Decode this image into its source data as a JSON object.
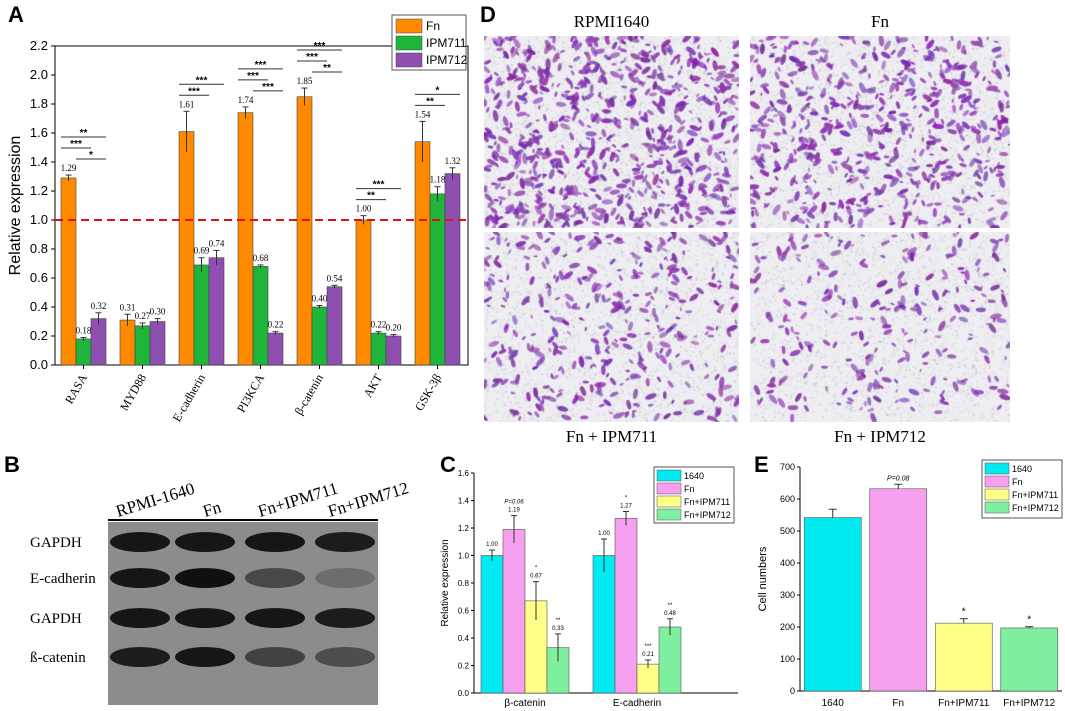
{
  "panels": {
    "A": "A",
    "B": "B",
    "C": "C",
    "D": "D",
    "E": "E"
  },
  "colors": {
    "fn": "#ff8a00",
    "ipm711": "#1fb43a",
    "ipm712": "#8f4fb0",
    "c1640": "#00eaf2",
    "cfn": "#f7a0f0",
    "c711": "#ffff88",
    "c712": "#7ff0a0",
    "ref_line": "#e01010",
    "stain": "#7a2a9a"
  },
  "chart_data": [
    {
      "panel": "A",
      "type": "bar",
      "ylabel": "Relative expression",
      "ylim": [
        0.0,
        2.2
      ],
      "yticks": [
        "0.0",
        "0.2",
        "0.4",
        "0.6",
        "0.8",
        "1.0",
        "1.2",
        "1.4",
        "1.6",
        "1.8",
        "2.0",
        "2.2"
      ],
      "reference_line": 1.0,
      "legend_position": "top-right",
      "categories": [
        "RASA",
        "MYD88",
        "E-cadherin",
        "PI3KCA",
        "β-catenin",
        "AKT",
        "GSK-3β"
      ],
      "series": [
        {
          "name": "Fn",
          "values": [
            1.29,
            0.31,
            1.61,
            1.74,
            1.85,
            1.0,
            1.54
          ],
          "labels": [
            "1.29",
            "0.31",
            "1.61",
            "1.74",
            "1.85",
            "1.00",
            "1.54"
          ],
          "errors": [
            0.02,
            0.04,
            0.14,
            0.04,
            0.06,
            0.03,
            0.14
          ]
        },
        {
          "name": "IPM711",
          "values": [
            0.18,
            0.27,
            0.69,
            0.68,
            0.4,
            0.22,
            1.18
          ],
          "labels": [
            "0.18",
            "0.27",
            "0.69",
            "0.68",
            "0.40",
            "0.22",
            "1.18"
          ],
          "errors": [
            0.01,
            0.02,
            0.05,
            0.01,
            0.01,
            0.01,
            0.05
          ]
        },
        {
          "name": "IPM712",
          "values": [
            0.32,
            0.3,
            0.74,
            0.22,
            0.54,
            0.2,
            1.32
          ],
          "labels": [
            "0.32",
            "0.30",
            "0.74",
            "0.22",
            "0.54",
            "0.20",
            "1.32"
          ],
          "errors": [
            0.04,
            0.02,
            0.05,
            0.01,
            0.01,
            0.01,
            0.04
          ]
        }
      ],
      "significance": [
        {
          "category": 0,
          "pair": "Fn-IPM712",
          "label": "**"
        },
        {
          "category": 0,
          "pair": "Fn-IPM711",
          "label": "***"
        },
        {
          "category": 0,
          "pair": "IPM711-IPM712",
          "label": "*"
        },
        {
          "category": 2,
          "pair": "Fn-IPM712",
          "label": "***"
        },
        {
          "category": 2,
          "pair": "Fn-IPM711",
          "label": "***"
        },
        {
          "category": 3,
          "pair": "Fn-IPM712",
          "label": "***"
        },
        {
          "category": 3,
          "pair": "Fn-IPM711",
          "label": "***"
        },
        {
          "category": 3,
          "pair": "IPM711-IPM712",
          "label": "***"
        },
        {
          "category": 4,
          "pair": "Fn-IPM712",
          "label": "***"
        },
        {
          "category": 4,
          "pair": "Fn-IPM711",
          "label": "***"
        },
        {
          "category": 4,
          "pair": "IPM711-IPM712",
          "label": "**"
        },
        {
          "category": 5,
          "pair": "Fn-IPM712",
          "label": "***"
        },
        {
          "category": 5,
          "pair": "Fn-IPM711",
          "label": "**"
        },
        {
          "category": 6,
          "pair": "Fn-IPM712",
          "label": "*"
        },
        {
          "category": 6,
          "pair": "Fn-IPM711",
          "label": "**"
        }
      ]
    },
    {
      "panel": "C",
      "type": "bar",
      "ylabel": "Relative expression",
      "ylim": [
        0.0,
        1.6
      ],
      "yticks": [
        "0.0",
        "0.2",
        "0.4",
        "0.6",
        "0.8",
        "1.0",
        "1.2",
        "1.4",
        "1.6"
      ],
      "legend_position": "top-right",
      "categories": [
        "β-catenin",
        "E-cadherin"
      ],
      "series": [
        {
          "name": "1640",
          "values": [
            1.0,
            1.0
          ],
          "errors": [
            0.04,
            0.12
          ]
        },
        {
          "name": "Fn",
          "values": [
            1.19,
            1.27
          ],
          "errors": [
            0.1,
            0.05
          ]
        },
        {
          "name": "Fn+IPM711",
          "values": [
            0.67,
            0.21
          ],
          "errors": [
            0.14,
            0.03
          ]
        },
        {
          "name": "Fn+IPM712",
          "values": [
            0.33,
            0.48
          ],
          "errors": [
            0.1,
            0.06
          ]
        }
      ],
      "annotations": [
        {
          "category": 0,
          "series": 0,
          "lines": [
            "1.00"
          ]
        },
        {
          "category": 0,
          "series": 1,
          "lines": [
            "P=0.06",
            "1.19"
          ]
        },
        {
          "category": 0,
          "series": 2,
          "lines": [
            "*",
            "0.67"
          ]
        },
        {
          "category": 0,
          "series": 3,
          "lines": [
            "**",
            "0.33"
          ]
        },
        {
          "category": 1,
          "series": 0,
          "lines": [
            "1.00"
          ]
        },
        {
          "category": 1,
          "series": 1,
          "lines": [
            "*",
            "1.27"
          ]
        },
        {
          "category": 1,
          "series": 2,
          "lines": [
            "***",
            "0.21"
          ]
        },
        {
          "category": 1,
          "series": 3,
          "lines": [
            "**",
            "0.48"
          ]
        }
      ]
    },
    {
      "panel": "E",
      "type": "bar",
      "ylabel": "Cell numbers",
      "ylim": [
        0,
        700
      ],
      "yticks": [
        "0",
        "100",
        "200",
        "300",
        "400",
        "500",
        "600",
        "700"
      ],
      "legend_position": "top-right",
      "categories": [
        "1640",
        "Fn",
        "Fn+IPM711",
        "Fn+IPM712"
      ],
      "values": [
        542,
        632,
        212,
        197
      ],
      "errors": [
        26,
        14,
        14,
        4
      ],
      "legend": [
        "1640",
        "Fn",
        "Fn+IPM711",
        "Fn+IPM712"
      ],
      "annotations": [
        "",
        "P=0.08",
        "*",
        "*"
      ]
    }
  ],
  "western_blot": {
    "lanes": [
      "RPMI-1640",
      "Fn",
      "Fn+IPM711",
      "Fn+IPM712"
    ],
    "rows": [
      "GAPDH",
      "E-cadherin",
      "GAPDH",
      "ß-catenin"
    ]
  },
  "micrographs": {
    "captions": [
      "RPMI1640",
      "Fn",
      "Fn + IPM711",
      "Fn + IPM712"
    ],
    "density": [
      1.0,
      0.8,
      0.5,
      0.35
    ]
  }
}
